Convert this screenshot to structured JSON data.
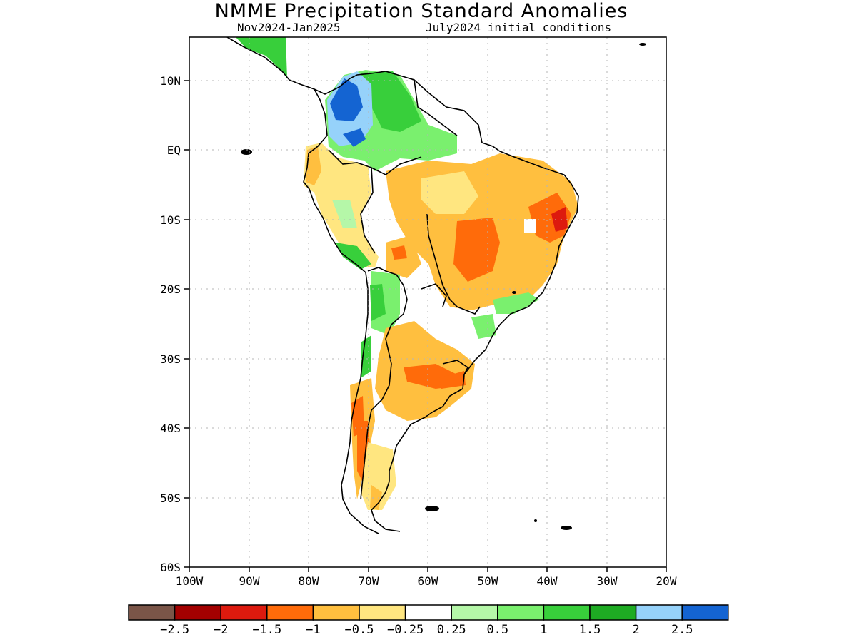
{
  "header": {
    "title": "NMME Precipitation Standard Anomalies",
    "period": "Nov2024-Jan2025",
    "init": "July2024 initial conditions"
  },
  "map": {
    "lat_ticks": [
      "10N",
      "EQ",
      "10S",
      "20S",
      "30S",
      "40S",
      "50S",
      "60S"
    ],
    "lon_ticks": [
      "100W",
      "90W",
      "80W",
      "70W",
      "60W",
      "50W",
      "40W",
      "30W",
      "20W"
    ],
    "lat_range": [
      -60,
      16
    ],
    "lon_range": [
      -100,
      -20
    ],
    "grid": "dotted"
  },
  "colorbar": {
    "colors": [
      "#7a5548",
      "#a30000",
      "#dd1a0e",
      "#ff6b0a",
      "#ffbf3f",
      "#ffe680",
      "#ffffff",
      "#b5f7a8",
      "#7af06e",
      "#38cf3b",
      "#1eab23",
      "#96d2fa",
      "#1464d2"
    ],
    "labels": [
      "-2.5",
      "-2",
      "-1.5",
      "-1",
      "-0.5",
      "-0.25",
      "0.25",
      "0.5",
      "1",
      "1.5",
      "2",
      "2.5"
    ]
  }
}
